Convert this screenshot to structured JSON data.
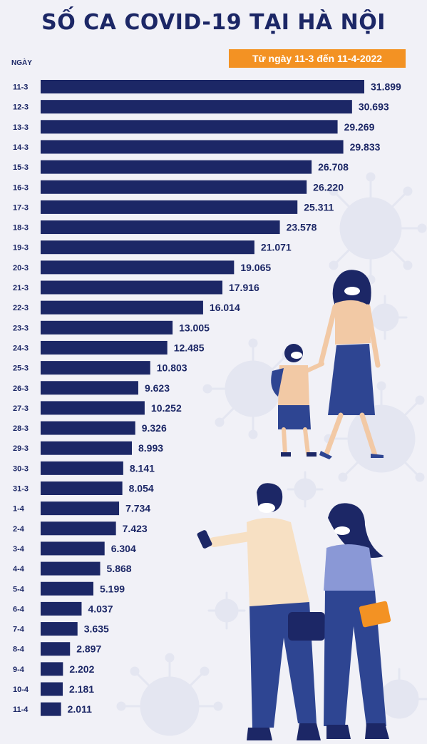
{
  "header": {
    "title": "SỐ CA COVID-19 TẠI HÀ NỘI",
    "subtitle": "Từ ngày 11-3 đến 11-4-2022",
    "axis_label": "NGÀY"
  },
  "colors": {
    "bar": "#1c2766",
    "title": "#1c2766",
    "badge": "#f39223",
    "background": "#f1f1f7"
  },
  "illustration": {
    "icons": [
      "virus-icon",
      "woman-with-mask-icon",
      "child-with-backpack-icon",
      "man-with-phone-icon",
      "woman-with-bag-icon"
    ]
  },
  "chart_data": {
    "type": "bar",
    "orientation": "horizontal",
    "title": "SỐ CA COVID-19 TẠI HÀ NỘI",
    "subtitle": "Từ ngày 11-3 đến 11-4-2022",
    "ylabel": "NGÀY",
    "xlabel": "",
    "grid": false,
    "xlim": [
      0,
      32000
    ],
    "categories": [
      "11-3",
      "12-3",
      "13-3",
      "14-3",
      "15-3",
      "16-3",
      "17-3",
      "18-3",
      "19-3",
      "20-3",
      "21-3",
      "22-3",
      "23-3",
      "24-3",
      "25-3",
      "26-3",
      "27-3",
      "28-3",
      "29-3",
      "30-3",
      "31-3",
      "1-4",
      "2-4",
      "3-4",
      "4-4",
      "5-4",
      "6-4",
      "7-4",
      "8-4",
      "9-4",
      "10-4",
      "11-4"
    ],
    "values": [
      31899,
      30693,
      29269,
      29833,
      26708,
      26220,
      25311,
      23578,
      21071,
      19065,
      17916,
      16014,
      13005,
      12485,
      10803,
      9623,
      10252,
      9326,
      8993,
      8141,
      8054,
      7734,
      7423,
      6304,
      5868,
      5199,
      4037,
      3635,
      2897,
      2202,
      2181,
      2011
    ],
    "value_labels": [
      "31.899",
      "30.693",
      "29.269",
      "29.833",
      "26.708",
      "26.220",
      "25.311",
      "23.578",
      "21.071",
      "19.065",
      "17.916",
      "16.014",
      "13.005",
      "12.485",
      "10.803",
      "9.623",
      "10.252",
      "9.326",
      "8.993",
      "8.141",
      "8.054",
      "7.734",
      "7.423",
      "6.304",
      "5.868",
      "5.199",
      "4.037",
      "3.635",
      "2.897",
      "2.202",
      "2.181",
      "2.011"
    ]
  }
}
